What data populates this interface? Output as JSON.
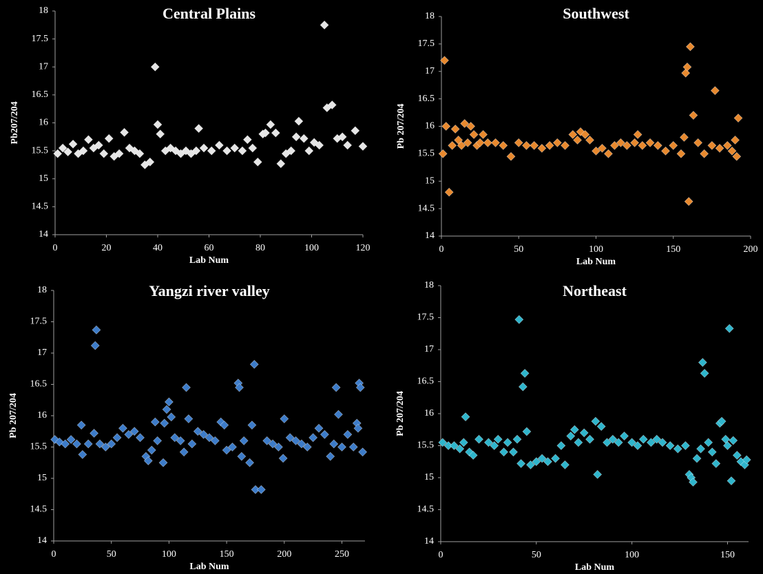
{
  "chart_data": [
    {
      "type": "scatter",
      "title": "Central Plains",
      "x_label": "Lab Num",
      "y_label": "Pb207/204",
      "color": "#e6e6e6",
      "xlim": [
        0,
        120
      ],
      "xticks": [
        0,
        20,
        40,
        60,
        80,
        100,
        120
      ],
      "ylim": [
        14,
        18
      ],
      "yticks": [
        14,
        14.5,
        15,
        15.5,
        16,
        16.5,
        17,
        17.5,
        18
      ],
      "x": [
        1,
        3,
        5,
        7,
        9,
        11,
        13,
        15,
        17,
        19,
        21,
        23,
        25,
        27,
        29,
        31,
        33,
        35,
        37,
        39,
        40,
        41,
        43,
        45,
        47,
        49,
        51,
        53,
        55,
        56,
        58,
        61,
        64,
        67,
        70,
        73,
        75,
        77,
        79,
        81,
        82,
        84,
        86,
        88,
        90,
        92,
        94,
        95,
        97,
        99,
        101,
        103,
        105,
        106,
        108,
        110,
        112,
        114,
        117,
        120
      ],
      "values": [
        15.45,
        15.55,
        15.48,
        15.62,
        15.45,
        15.5,
        15.7,
        15.55,
        15.6,
        15.45,
        15.72,
        15.4,
        15.45,
        15.83,
        15.55,
        15.5,
        15.45,
        15.25,
        15.3,
        17,
        15.97,
        15.8,
        15.5,
        15.55,
        15.5,
        15.45,
        15.5,
        15.45,
        15.5,
        15.9,
        15.55,
        15.5,
        15.6,
        15.5,
        15.55,
        15.5,
        15.7,
        15.55,
        15.3,
        15.8,
        15.82,
        15.97,
        15.82,
        15.27,
        15.45,
        15.5,
        15.75,
        16.03,
        15.72,
        15.5,
        15.65,
        15.6,
        17.75,
        16.27,
        16.32,
        15.72,
        15.75,
        15.6,
        15.86,
        15.58
      ]
    },
    {
      "type": "scatter",
      "title": "Southwest",
      "x_label": "Lab Num",
      "y_label": "Pb 207/204",
      "color": "#e8892e",
      "xlim": [
        0,
        200
      ],
      "xticks": [
        0,
        50,
        100,
        150,
        200
      ],
      "ylim": [
        14,
        18
      ],
      "yticks": [
        14,
        14.5,
        15,
        15.5,
        16,
        16.5,
        17,
        17.5,
        18
      ],
      "x": [
        1,
        2,
        3,
        5,
        7,
        9,
        11,
        13,
        15,
        17,
        19,
        21,
        23,
        25,
        27,
        30,
        35,
        40,
        45,
        50,
        55,
        60,
        65,
        70,
        75,
        80,
        85,
        88,
        90,
        93,
        96,
        100,
        104,
        108,
        112,
        116,
        120,
        125,
        127,
        130,
        135,
        140,
        145,
        150,
        155,
        157,
        158,
        159,
        160,
        161,
        163,
        166,
        170,
        175,
        177,
        180,
        185,
        188,
        190,
        191,
        192
      ],
      "values": [
        15.5,
        17.2,
        16,
        14.8,
        15.65,
        15.95,
        15.75,
        15.65,
        16.05,
        15.7,
        16,
        15.85,
        15.65,
        15.7,
        15.85,
        15.7,
        15.7,
        15.65,
        15.45,
        15.7,
        15.65,
        15.65,
        15.6,
        15.65,
        15.7,
        15.65,
        15.85,
        15.75,
        15.9,
        15.85,
        15.75,
        15.55,
        15.6,
        15.5,
        15.65,
        15.7,
        15.65,
        15.7,
        15.85,
        15.65,
        15.7,
        15.65,
        15.55,
        15.65,
        15.5,
        15.8,
        16.97,
        17.08,
        14.63,
        17.45,
        16.2,
        15.7,
        15.5,
        15.65,
        16.65,
        15.6,
        15.65,
        15.55,
        15.75,
        15.45,
        16.15
      ]
    },
    {
      "type": "scatter",
      "title": "Yangzi river valley",
      "x_label": "Lab Num",
      "y_label": "Pb 207/204",
      "color": "#3d7cc9",
      "xlim": [
        0,
        270
      ],
      "xticks": [
        0,
        50,
        100,
        150,
        200,
        250
      ],
      "ylim": [
        14,
        18
      ],
      "yticks": [
        14,
        14.5,
        15,
        15.5,
        16,
        16.5,
        17,
        17.5,
        18
      ],
      "x": [
        1,
        5,
        10,
        15,
        20,
        24,
        25,
        30,
        35,
        36,
        37,
        40,
        45,
        50,
        55,
        60,
        65,
        70,
        75,
        80,
        82,
        85,
        88,
        90,
        95,
        96,
        98,
        100,
        102,
        105,
        110,
        113,
        115,
        117,
        120,
        125,
        130,
        135,
        140,
        145,
        148,
        150,
        155,
        160,
        161,
        163,
        165,
        170,
        172,
        174,
        175,
        180,
        185,
        190,
        195,
        199,
        200,
        205,
        210,
        215,
        220,
        225,
        230,
        235,
        240,
        243,
        245,
        247,
        250,
        255,
        260,
        263,
        264,
        265,
        266,
        268
      ],
      "values": [
        15.62,
        15.58,
        15.55,
        15.62,
        15.55,
        15.85,
        15.38,
        15.55,
        15.72,
        17.12,
        17.37,
        15.55,
        15.5,
        15.55,
        15.65,
        15.8,
        15.7,
        15.75,
        15.65,
        15.35,
        15.28,
        15.45,
        15.9,
        15.6,
        15.25,
        15.88,
        16.1,
        16.22,
        15.98,
        15.65,
        15.6,
        15.42,
        16.45,
        15.95,
        15.55,
        15.75,
        15.7,
        15.65,
        15.6,
        15.9,
        15.85,
        15.45,
        15.5,
        16.52,
        16.45,
        15.35,
        15.6,
        15.25,
        15.85,
        16.82,
        14.82,
        14.82,
        15.6,
        15.55,
        15.5,
        15.32,
        15.95,
        15.65,
        15.6,
        15.55,
        15.5,
        15.65,
        15.8,
        15.7,
        15.35,
        15.55,
        16.45,
        16.02,
        15.5,
        15.7,
        15.5,
        15.88,
        15.8,
        16.52,
        16.45,
        15.42
      ]
    },
    {
      "type": "scatter",
      "title": "Northeast",
      "x_label": "Lab Num",
      "y_label": "Pb 207/204",
      "color": "#2fb5cc",
      "xlim": [
        0,
        161
      ],
      "xticks": [
        0,
        50,
        100,
        150
      ],
      "ylim": [
        14,
        18
      ],
      "yticks": [
        14,
        14.5,
        15,
        15.5,
        16,
        16.5,
        17,
        17.5,
        18
      ],
      "x": [
        1,
        4,
        7,
        10,
        12,
        13,
        15,
        17,
        20,
        25,
        28,
        30,
        33,
        35,
        38,
        40,
        41,
        42,
        43,
        44,
        45,
        47,
        50,
        53,
        56,
        60,
        63,
        65,
        68,
        70,
        72,
        75,
        78,
        81,
        82,
        84,
        87,
        90,
        93,
        96,
        100,
        103,
        106,
        110,
        113,
        116,
        120,
        124,
        128,
        130,
        131,
        132,
        134,
        136,
        137,
        138,
        140,
        142,
        144,
        146,
        147,
        149,
        150,
        151,
        152,
        153,
        155,
        157,
        159,
        160
      ],
      "values": [
        15.55,
        15.5,
        15.5,
        15.45,
        15.55,
        15.95,
        15.4,
        15.35,
        15.6,
        15.55,
        15.5,
        15.6,
        15.4,
        15.55,
        15.4,
        15.6,
        17.47,
        15.22,
        16.42,
        16.63,
        15.72,
        15.2,
        15.25,
        15.3,
        15.25,
        15.3,
        15.5,
        15.2,
        15.65,
        15.75,
        15.55,
        15.7,
        15.6,
        15.88,
        15.05,
        15.8,
        15.55,
        15.6,
        15.55,
        15.65,
        15.55,
        15.5,
        15.6,
        15.55,
        15.6,
        15.55,
        15.5,
        15.45,
        15.5,
        15.05,
        15,
        14.93,
        15.3,
        15.45,
        16.8,
        16.63,
        15.55,
        15.4,
        15.22,
        15.85,
        15.88,
        15.6,
        15.5,
        17.33,
        14.95,
        15.58,
        15.35,
        15.25,
        15.2,
        15.28
      ]
    }
  ]
}
